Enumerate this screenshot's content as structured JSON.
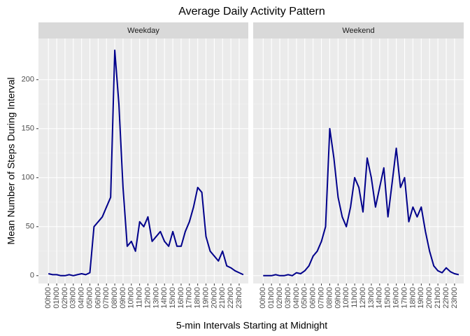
{
  "chart_data": {
    "type": "line",
    "facet": true,
    "title": "Average Daily Activity Pattern",
    "x_label": "5-min Intervals Starting at Midnight",
    "y_label": "Mean Number of Steps During Interval",
    "xlim": [
      -1.2,
      24.1
    ],
    "ylim": [
      -8,
      242
    ],
    "yticks": [
      0,
      50,
      100,
      150,
      200
    ],
    "xticks": [
      {
        "value": 0,
        "label": "00h00"
      },
      {
        "value": 1,
        "label": "01h00"
      },
      {
        "value": 2,
        "label": "02h00"
      },
      {
        "value": 3,
        "label": "03h00"
      },
      {
        "value": 4,
        "label": "04h00"
      },
      {
        "value": 5,
        "label": "05h00"
      },
      {
        "value": 6,
        "label": "06h00"
      },
      {
        "value": 7,
        "label": "07h00"
      },
      {
        "value": 8,
        "label": "08h00"
      },
      {
        "value": 9,
        "label": "09h00"
      },
      {
        "value": 10,
        "label": "10h00"
      },
      {
        "value": 11,
        "label": "11h00"
      },
      {
        "value": 12,
        "label": "12h00"
      },
      {
        "value": 13,
        "label": "13h00"
      },
      {
        "value": 14,
        "label": "14h00"
      },
      {
        "value": 15,
        "label": "15h00"
      },
      {
        "value": 16,
        "label": "16h00"
      },
      {
        "value": 17,
        "label": "17h00"
      },
      {
        "value": 18,
        "label": "18h00"
      },
      {
        "value": 19,
        "label": "19h00"
      },
      {
        "value": 20,
        "label": "20h00"
      },
      {
        "value": 21,
        "label": "21h00"
      },
      {
        "value": 22,
        "label": "22h00"
      },
      {
        "value": 23,
        "label": "23h00"
      }
    ],
    "grid": true,
    "x": [
      0,
      0.5,
      1,
      1.5,
      2,
      2.5,
      3,
      3.5,
      4,
      4.5,
      5,
      5.5,
      6,
      6.5,
      7,
      7.5,
      8,
      8.5,
      9,
      9.5,
      10,
      10.5,
      11,
      11.5,
      12,
      12.5,
      13,
      13.5,
      14,
      14.5,
      15,
      15.5,
      16,
      16.5,
      17,
      17.5,
      18,
      18.5,
      19,
      19.5,
      20,
      20.5,
      21,
      21.5,
      22,
      22.5,
      23,
      23.5
    ],
    "series": [
      {
        "name": "Weekday",
        "color": "#00008b",
        "values": [
          2,
          1,
          1,
          0,
          0,
          1,
          0,
          1,
          2,
          1,
          3,
          50,
          55,
          60,
          70,
          80,
          230,
          175,
          90,
          30,
          35,
          25,
          55,
          50,
          60,
          35,
          40,
          45,
          35,
          30,
          45,
          30,
          30,
          45,
          55,
          70,
          90,
          85,
          40,
          25,
          20,
          15,
          25,
          10,
          8,
          5,
          3,
          1
        ]
      },
      {
        "name": "Weekend",
        "color": "#00008b",
        "values": [
          0,
          0,
          0,
          1,
          0,
          0,
          1,
          0,
          3,
          2,
          5,
          10,
          20,
          25,
          35,
          50,
          150,
          120,
          80,
          60,
          50,
          70,
          100,
          90,
          65,
          120,
          100,
          70,
          90,
          110,
          60,
          95,
          130,
          90,
          100,
          55,
          70,
          60,
          70,
          45,
          25,
          10,
          5,
          3,
          8,
          4,
          2,
          1
        ]
      }
    ]
  }
}
